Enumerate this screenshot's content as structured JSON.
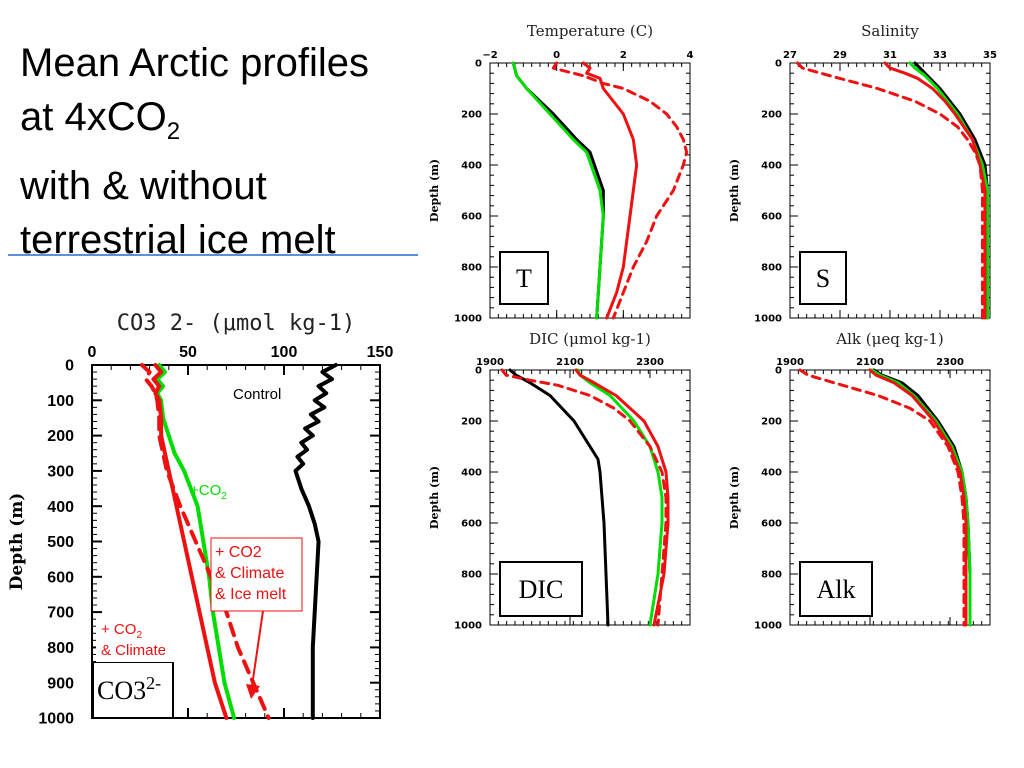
{
  "slide": {
    "title_lines": [
      "Mean Arctic profiles",
      "at 4xCO",
      "with & without",
      "terrestrial ice melt"
    ],
    "title_sub": "2",
    "accent_color": "#5b8fde"
  },
  "colors": {
    "control": "#000000",
    "co2": "#00dd00",
    "climate": "#ee1111"
  },
  "chart_data": [
    {
      "id": "co3",
      "type": "line",
      "title": "CO3 2- (μmol kg-1)",
      "xlabel": "",
      "ylabel": "Depth (m)",
      "xlim": [
        0,
        150
      ],
      "ylim": [
        1000,
        0
      ],
      "x_ticks": [
        0,
        50,
        100,
        150
      ],
      "y_ticks": [
        0,
        100,
        200,
        300,
        400,
        500,
        600,
        700,
        800,
        900,
        1000
      ],
      "box_label": "CO3",
      "box_label_sup": "2-",
      "annotations": {
        "control": "Control",
        "co2": "+CO",
        "co2_sub": "2",
        "ice": [
          "+ CO2",
          "& Climate",
          "& Ice melt"
        ],
        "climate_a": "+ CO",
        "climate_a_sub": "2",
        "climate_b": " & Climate"
      },
      "series": [
        {
          "key": "control",
          "style": "solid",
          "depth": [
            0,
            20,
            40,
            60,
            80,
            100,
            120,
            140,
            160,
            180,
            200,
            220,
            240,
            260,
            280,
            300,
            350,
            400,
            450,
            500,
            600,
            700,
            800,
            900,
            1000
          ],
          "x": [
            127,
            120,
            125,
            118,
            122,
            116,
            121,
            114,
            118,
            111,
            115,
            109,
            112,
            107,
            110,
            106,
            109,
            113,
            116,
            118,
            117,
            116,
            115,
            115,
            115
          ]
        },
        {
          "key": "co2",
          "style": "solid",
          "depth": [
            0,
            20,
            40,
            60,
            80,
            100,
            150,
            200,
            250,
            300,
            400,
            500,
            600,
            700,
            800,
            900,
            1000
          ],
          "x": [
            35,
            38,
            34,
            37,
            34,
            36,
            37,
            40,
            43,
            48,
            55,
            58,
            61,
            63,
            66,
            69,
            74
          ]
        },
        {
          "key": "climate",
          "style": "solid",
          "depth": [
            0,
            20,
            40,
            60,
            80,
            100,
            150,
            200,
            250,
            300,
            400,
            500,
            600,
            700,
            800,
            900,
            1000
          ],
          "x": [
            33,
            36,
            32,
            35,
            33,
            35,
            36,
            36,
            38,
            40,
            44,
            48,
            52,
            56,
            60,
            64,
            70
          ]
        },
        {
          "key": "climate",
          "style": "dashed",
          "depth": [
            0,
            20,
            40,
            60,
            80,
            100,
            150,
            200,
            250,
            300,
            400,
            500,
            600,
            700,
            800,
            900,
            1000
          ],
          "x": [
            26,
            30,
            28,
            31,
            33,
            34,
            35,
            35,
            37,
            39,
            46,
            54,
            62,
            70,
            76,
            84,
            92
          ]
        }
      ]
    },
    {
      "id": "temperature",
      "type": "line",
      "title": "Temperature (C)",
      "ylabel": "Depth (m)",
      "xlim": [
        -2,
        4
      ],
      "ylim": [
        1000,
        0
      ],
      "x_ticks": [
        -2,
        0,
        2,
        4
      ],
      "y_ticks": [
        0,
        200,
        400,
        600,
        800,
        1000
      ],
      "box_label": "T",
      "series": [
        {
          "key": "control",
          "style": "solid",
          "depth": [
            0,
            50,
            100,
            200,
            300,
            350,
            500,
            600,
            800,
            1000
          ],
          "x": [
            -1.3,
            -1.2,
            -0.9,
            -0.1,
            0.6,
            1.0,
            1.4,
            1.4,
            1.3,
            1.2
          ]
        },
        {
          "key": "co2",
          "style": "solid",
          "depth": [
            0,
            50,
            100,
            200,
            300,
            350,
            500,
            600,
            800,
            1000
          ],
          "x": [
            -1.3,
            -1.2,
            -0.9,
            -0.2,
            0.5,
            0.9,
            1.3,
            1.4,
            1.3,
            1.2
          ]
        },
        {
          "key": "climate",
          "style": "solid",
          "depth": [
            0,
            20,
            40,
            50,
            60,
            100,
            150,
            200,
            300,
            400,
            500,
            600,
            700,
            800,
            900,
            1000
          ],
          "x": [
            0.8,
            1.0,
            0.9,
            1.1,
            1.3,
            1.4,
            1.7,
            2.0,
            2.3,
            2.4,
            2.3,
            2.2,
            2.1,
            2.0,
            1.8,
            1.5
          ]
        },
        {
          "key": "climate",
          "style": "dashed",
          "depth": [
            0,
            20,
            30,
            50,
            80,
            100,
            150,
            200,
            250,
            300,
            350,
            400,
            500,
            600,
            700,
            800,
            900,
            1000
          ],
          "x": [
            0,
            -0.1,
            0.2,
            0.8,
            1.4,
            2.0,
            2.8,
            3.3,
            3.6,
            3.8,
            3.9,
            3.8,
            3.5,
            3.0,
            2.7,
            2.3,
            2.0,
            1.7
          ]
        }
      ]
    },
    {
      "id": "salinity",
      "type": "line",
      "title": "Salinity",
      "ylabel": "Depth (m)",
      "xlim": [
        27,
        35
      ],
      "ylim": [
        1000,
        0
      ],
      "x_ticks": [
        27,
        29,
        31,
        33,
        35
      ],
      "y_ticks": [
        0,
        200,
        400,
        600,
        800,
        1000
      ],
      "box_label": "S",
      "series": [
        {
          "key": "control",
          "style": "solid",
          "depth": [
            0,
            20,
            50,
            100,
            150,
            200,
            300,
            400,
            500,
            600,
            800,
            1000
          ],
          "x": [
            32.0,
            32.2,
            32.5,
            33.0,
            33.4,
            33.8,
            34.4,
            34.8,
            34.9,
            34.9,
            34.9,
            34.9
          ]
        },
        {
          "key": "co2",
          "style": "solid",
          "depth": [
            0,
            20,
            50,
            100,
            150,
            200,
            300,
            400,
            500,
            600,
            800,
            1000
          ],
          "x": [
            31.8,
            32.0,
            32.4,
            32.9,
            33.3,
            33.7,
            34.3,
            34.7,
            34.9,
            34.9,
            34.9,
            34.9
          ]
        },
        {
          "key": "climate",
          "style": "solid",
          "depth": [
            0,
            20,
            40,
            60,
            100,
            150,
            200,
            300,
            400,
            500,
            600,
            800,
            1000
          ],
          "x": [
            30.8,
            31.0,
            31.6,
            32.1,
            32.7,
            33.2,
            33.6,
            34.3,
            34.6,
            34.8,
            34.8,
            34.8,
            34.8
          ]
        },
        {
          "key": "climate",
          "style": "dashed",
          "depth": [
            0,
            20,
            50,
            100,
            150,
            200,
            250,
            300,
            350,
            400,
            500,
            600,
            800,
            1000
          ],
          "x": [
            27.3,
            27.5,
            28.6,
            30.5,
            32.0,
            33.0,
            33.7,
            34.1,
            34.4,
            34.6,
            34.7,
            34.7,
            34.7,
            34.7
          ]
        }
      ]
    },
    {
      "id": "dic",
      "type": "line",
      "title": "DIC (μmol kg-1)",
      "ylabel": "Depth (m)",
      "xlim": [
        1900,
        2400
      ],
      "ylim": [
        1000,
        0
      ],
      "x_ticks": [
        1900,
        2100,
        2300
      ],
      "y_ticks": [
        0,
        200,
        400,
        600,
        800,
        1000
      ],
      "x_tick_labels": [
        "1900",
        "2100",
        "2300"
      ],
      "box_label": "DIC",
      "series": [
        {
          "key": "control",
          "style": "solid",
          "depth": [
            0,
            20,
            50,
            100,
            200,
            300,
            350,
            400,
            500,
            600,
            800,
            1000
          ],
          "x": [
            1950,
            1965,
            2000,
            2050,
            2110,
            2150,
            2170,
            2175,
            2180,
            2185,
            2190,
            2195
          ]
        },
        {
          "key": "co2",
          "style": "solid",
          "depth": [
            0,
            20,
            50,
            100,
            200,
            300,
            400,
            500,
            600,
            800,
            1000
          ],
          "x": [
            2120,
            2125,
            2150,
            2200,
            2260,
            2300,
            2320,
            2330,
            2330,
            2320,
            2300
          ]
        },
        {
          "key": "climate",
          "style": "solid",
          "depth": [
            0,
            20,
            50,
            100,
            200,
            300,
            400,
            500,
            600,
            800,
            1000
          ],
          "x": [
            2115,
            2125,
            2160,
            2215,
            2285,
            2320,
            2340,
            2345,
            2345,
            2335,
            2310
          ]
        },
        {
          "key": "climate",
          "style": "dashed",
          "depth": [
            0,
            20,
            40,
            60,
            100,
            150,
            200,
            300,
            400,
            500,
            600,
            800,
            1000
          ],
          "x": [
            1930,
            1940,
            2000,
            2070,
            2150,
            2210,
            2250,
            2300,
            2330,
            2340,
            2340,
            2330,
            2320
          ]
        }
      ]
    },
    {
      "id": "alk",
      "type": "line",
      "title": "Alk (μeq kg-1)",
      "ylabel": "Depth (m)",
      "xlim": [
        1900,
        2400
      ],
      "ylim": [
        1000,
        0
      ],
      "x_ticks": [
        1900,
        2100,
        2300
      ],
      "y_ticks": [
        0,
        200,
        400,
        600,
        800,
        1000
      ],
      "x_tick_labels": [
        "1900",
        "2100",
        "2300"
      ],
      "box_label": "Alk",
      "series": [
        {
          "key": "control",
          "style": "solid",
          "depth": [
            0,
            20,
            50,
            100,
            200,
            300,
            400,
            500,
            600,
            800,
            1000
          ],
          "x": [
            2110,
            2130,
            2180,
            2220,
            2270,
            2310,
            2330,
            2340,
            2345,
            2350,
            2350
          ]
        },
        {
          "key": "co2",
          "style": "solid",
          "depth": [
            0,
            20,
            50,
            100,
            200,
            300,
            400,
            500,
            600,
            800,
            1000
          ],
          "x": [
            2105,
            2125,
            2170,
            2210,
            2265,
            2305,
            2330,
            2340,
            2345,
            2350,
            2350
          ]
        },
        {
          "key": "climate",
          "style": "solid",
          "depth": [
            0,
            20,
            50,
            100,
            200,
            300,
            400,
            500,
            600,
            800,
            1000
          ],
          "x": [
            2100,
            2115,
            2160,
            2205,
            2260,
            2300,
            2325,
            2335,
            2340,
            2340,
            2340
          ]
        },
        {
          "key": "climate",
          "style": "dashed",
          "depth": [
            0,
            20,
            50,
            100,
            150,
            200,
            300,
            400,
            500,
            600,
            800,
            1000
          ],
          "x": [
            1925,
            1945,
            2010,
            2120,
            2200,
            2250,
            2295,
            2320,
            2330,
            2335,
            2335,
            2335
          ]
        }
      ]
    }
  ]
}
